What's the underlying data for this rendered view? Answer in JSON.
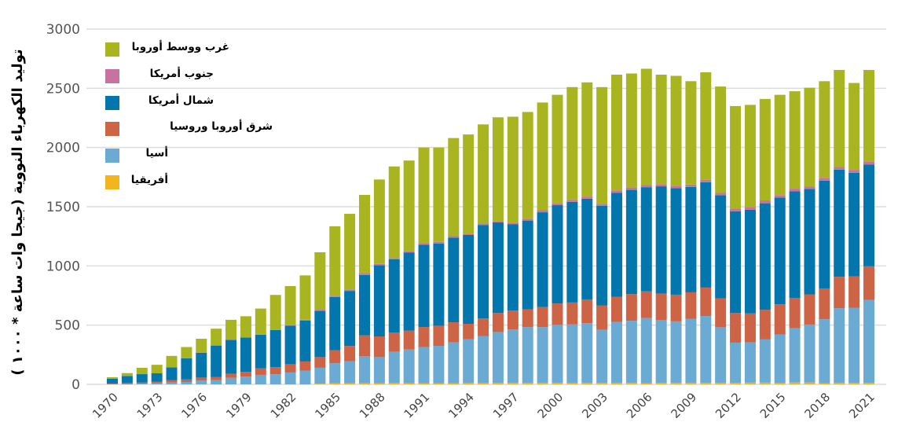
{
  "chart_data": {
    "type": "bar",
    "stacked": true,
    "title": "",
    "xlabel": "",
    "ylabel": "توليد الكهرباء النووية (جيجا وات ساعة * ١٠٠٠ )",
    "ylim": [
      0,
      3000
    ],
    "yticks": [
      0,
      500,
      1000,
      1500,
      2000,
      2500,
      3000
    ],
    "grid": true,
    "legend_position": "top-left",
    "x": [
      1970,
      1971,
      1972,
      1973,
      1974,
      1975,
      1976,
      1977,
      1978,
      1979,
      1980,
      1981,
      1982,
      1983,
      1984,
      1985,
      1986,
      1987,
      1988,
      1989,
      1990,
      1991,
      1992,
      1993,
      1994,
      1995,
      1996,
      1997,
      1998,
      1999,
      2000,
      2001,
      2002,
      2003,
      2004,
      2005,
      2006,
      2007,
      2008,
      2009,
      2010,
      2011,
      2012,
      2013,
      2014,
      2015,
      2016,
      2017,
      2018,
      2019,
      2020,
      2021
    ],
    "xtick_labels": [
      "1970",
      "1973",
      "1976",
      "1979",
      "1982",
      "1985",
      "1988",
      "1991",
      "1994",
      "1997",
      "2000",
      "2003",
      "2006",
      "2009",
      "2012",
      "2015",
      "2018",
      "2021"
    ],
    "series": [
      {
        "name": "أفريقيا",
        "color": "#f2b51f",
        "values": [
          0,
          0,
          0,
          0,
          0,
          0,
          0,
          0,
          0,
          0,
          0,
          0,
          0,
          0,
          5,
          8,
          9,
          9,
          10,
          11,
          9,
          9,
          10,
          9,
          11,
          11,
          12,
          13,
          13,
          13,
          13,
          11,
          12,
          12,
          13,
          12,
          10,
          12,
          12,
          12,
          12,
          12,
          12,
          14,
          14,
          11,
          15,
          15,
          10,
          13,
          12,
          12
        ]
      },
      {
        "name": "أسيا",
        "color": "#6aaad3",
        "values": [
          2,
          3,
          6,
          9,
          16,
          20,
          32,
          35,
          55,
          65,
          80,
          85,
          100,
          115,
          135,
          170,
          185,
          230,
          220,
          265,
          285,
          305,
          315,
          345,
          370,
          395,
          430,
          450,
          470,
          470,
          490,
          495,
          505,
          450,
          515,
          525,
          550,
          530,
          520,
          540,
          565,
          470,
          340,
          340,
          365,
          410,
          460,
          490,
          540,
          630,
          635,
          700
        ]
      },
      {
        "name": "شرق أوروبا وروسيا",
        "color": "#cc6445",
        "values": [
          5,
          8,
          10,
          14,
          18,
          21,
          25,
          28,
          35,
          40,
          55,
          60,
          70,
          78,
          90,
          110,
          130,
          175,
          175,
          160,
          160,
          170,
          170,
          170,
          130,
          150,
          160,
          160,
          150,
          170,
          180,
          185,
          200,
          205,
          210,
          225,
          225,
          225,
          225,
          225,
          240,
          245,
          250,
          245,
          250,
          255,
          255,
          255,
          260,
          265,
          265,
          285
        ]
      },
      {
        "name": "شمال أمريكا",
        "color": "#0276ad",
        "values": [
          40,
          60,
          70,
          70,
          110,
          180,
          210,
          265,
          285,
          290,
          285,
          315,
          325,
          345,
          390,
          450,
          465,
          510,
          600,
          620,
          660,
          695,
          695,
          715,
          750,
          790,
          765,
          730,
          750,
          800,
          830,
          850,
          850,
          840,
          880,
          880,
          880,
          905,
          900,
          890,
          890,
          870,
          860,
          875,
          900,
          900,
          900,
          890,
          910,
          905,
          875,
          860
        ]
      },
      {
        "name": "جنوب أمريكا",
        "color": "#c8739f",
        "values": [
          0,
          0,
          0,
          0,
          0,
          2,
          2,
          2,
          2,
          2,
          3,
          3,
          5,
          8,
          10,
          10,
          12,
          12,
          12,
          10,
          10,
          12,
          12,
          12,
          12,
          12,
          12,
          12,
          15,
          17,
          16,
          17,
          18,
          18,
          20,
          20,
          20,
          18,
          20,
          20,
          21,
          22,
          22,
          24,
          24,
          22,
          22,
          22,
          24,
          22,
          24,
          24
        ]
      },
      {
        "name": "غرب ووسط أوروبا",
        "color": "#a8b521",
        "values": [
          13,
          24,
          54,
          72,
          96,
          92,
          116,
          140,
          168,
          178,
          217,
          292,
          330,
          374,
          485,
          587,
          639,
          664,
          713,
          774,
          766,
          809,
          798,
          829,
          837,
          837,
          876,
          895,
          902,
          910,
          916,
          952,
          965,
          985,
          977,
          963,
          980,
          925,
          928,
          873,
          907,
          896,
          866,
          862,
          857,
          847,
          823,
          833,
          816,
          820,
          734,
          774
        ]
      }
    ]
  }
}
